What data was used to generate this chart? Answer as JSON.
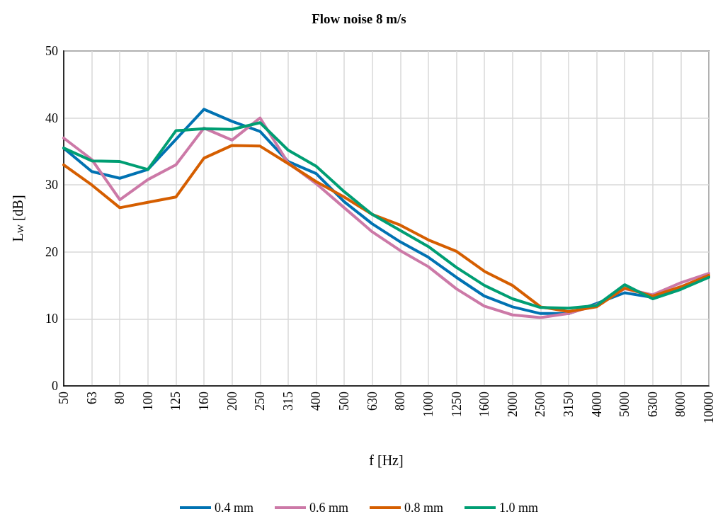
{
  "chart_data": {
    "type": "line",
    "title": "Flow noise 8 m/s",
    "xlabel": "f [Hz]",
    "ylabel": "L$_{W}$ [dB]",
    "categories": [
      "50",
      "63",
      "80",
      "100",
      "125",
      "160",
      "200",
      "250",
      "315",
      "400",
      "500",
      "630",
      "800",
      "1000",
      "1250",
      "1600",
      "2000",
      "2500",
      "3150",
      "4000",
      "5000",
      "6300",
      "8000",
      "10000"
    ],
    "series": [
      {
        "name": "0.4 mm",
        "color": "#0072b2",
        "values": [
          35.5,
          32,
          31,
          32.3,
          36.8,
          41.3,
          39.5,
          38,
          33.5,
          31.7,
          27.5,
          24.2,
          21.5,
          19.2,
          16.2,
          13.4,
          11.8,
          10.8,
          10.8,
          12.3,
          13.9,
          13.2,
          14.5,
          16.3
        ]
      },
      {
        "name": "0.6 mm",
        "color": "#cc79a7",
        "values": [
          37,
          33.8,
          27.8,
          30.8,
          33,
          38.5,
          36.7,
          40,
          33.3,
          30.2,
          26.6,
          23,
          20.2,
          17.8,
          14.5,
          11.9,
          10.6,
          10.2,
          10.8,
          12.1,
          14.5,
          13.6,
          15.4,
          16.8
        ]
      },
      {
        "name": "0.8 mm",
        "color": "#d55e00",
        "values": [
          33,
          30,
          26.6,
          27.4,
          28.2,
          34,
          35.9,
          35.8,
          33.2,
          30.5,
          28.2,
          25.6,
          24,
          21.8,
          20.1,
          17.1,
          15,
          11.8,
          11.1,
          11.8,
          14.6,
          13.4,
          14.8,
          16.5
        ]
      },
      {
        "name": "1.0 mm",
        "color": "#009e73",
        "values": [
          35.5,
          33.6,
          33.5,
          32.3,
          38.1,
          38.4,
          38.3,
          39.3,
          35.2,
          32.8,
          29,
          25.6,
          23.2,
          20.8,
          17.7,
          15,
          13,
          11.7,
          11.6,
          12,
          15.1,
          13,
          14.4,
          16.2
        ]
      }
    ],
    "ylim": [
      0,
      50
    ],
    "yticks": [
      0,
      10,
      20,
      30,
      40,
      50
    ],
    "grid": true,
    "legend": "bottom",
    "marker": "none",
    "line_style": "solid"
  }
}
